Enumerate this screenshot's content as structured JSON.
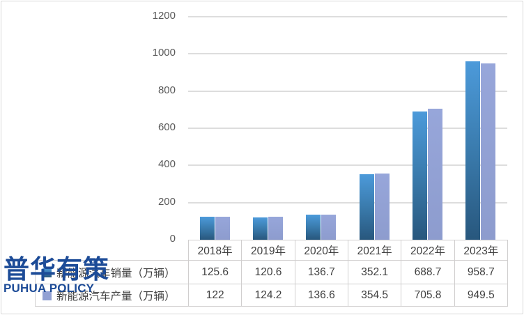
{
  "watermark": {
    "cn": "普华有策",
    "en": "PUHUA POLICY",
    "color": "#1C4B97"
  },
  "chart_data": {
    "type": "bar",
    "title": "",
    "xlabel": "",
    "ylabel": "",
    "categories": [
      "2018年",
      "2019年",
      "2020年",
      "2021年",
      "2022年",
      "2023年"
    ],
    "series": [
      {
        "name": "新能源汽车销量（万辆）",
        "values": [
          125.6,
          120.6,
          136.7,
          352.1,
          688.7,
          958.7
        ]
      },
      {
        "name": "新能源汽车产量（万辆）",
        "values": [
          122,
          124.2,
          136.6,
          354.5,
          705.8,
          949.5
        ]
      }
    ],
    "ylim": [
      0,
      1200
    ],
    "ytick_interval": 200,
    "yticks": [
      1200,
      1000,
      800,
      600,
      400,
      200,
      0
    ],
    "grid": true,
    "legend_position": "data-table-rows-with-keys"
  },
  "colors": {
    "sales_gradient_top": "#4C9ADA",
    "sales_gradient_bottom": "#28577D",
    "production_fill": "#92A1D3",
    "gridline": "#DDDDDD",
    "table_border": "#D0CECE",
    "axis_text": "#595959",
    "cell_text": "#3F3F3F",
    "watermark_blue": "#1C4B97"
  }
}
